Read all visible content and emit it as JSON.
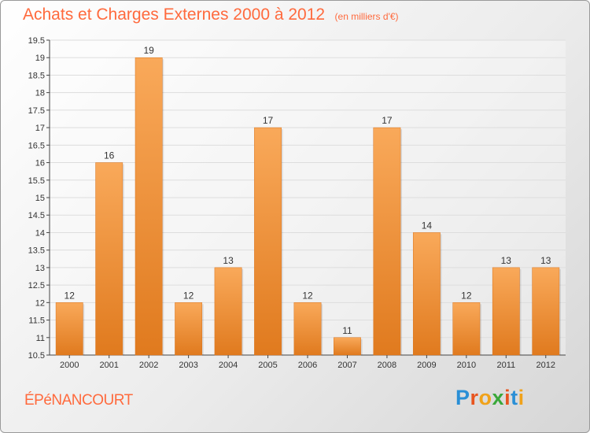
{
  "header": {
    "title": "Achats et Charges Externes 2000 à 2012",
    "subtitle": "(en milliers d'€)"
  },
  "footer": {
    "commune": "ÉPéNANCOURT",
    "logo_text": "Proxiti",
    "logo_colors": [
      "#2a8fd6",
      "#e8551f",
      "#f0a21a",
      "#3aa83a",
      "#e8551f",
      "#2a8fd6",
      "#f0a21a"
    ]
  },
  "colors": {
    "bar_light": "#f9a95a",
    "bar_dark": "#e07a1e",
    "grid": "#dddddd",
    "axis": "#444444",
    "accent": "#ff6a3d"
  },
  "chart_data": {
    "type": "bar",
    "title": "Achats et Charges Externes 2000 à 2012",
    "subtitle": "(en milliers d'€)",
    "xlabel": "",
    "ylabel": "",
    "categories": [
      "2000",
      "2001",
      "2002",
      "2003",
      "2004",
      "2005",
      "2006",
      "2007",
      "2008",
      "2009",
      "2010",
      "2011",
      "2012"
    ],
    "values": [
      12,
      16,
      19,
      12,
      13,
      17,
      12,
      11,
      17,
      14,
      12,
      13,
      13
    ],
    "ylim": [
      10.5,
      19.5
    ],
    "yticks": [
      "10.5",
      "11",
      "11.5",
      "12",
      "12.5",
      "13",
      "13.5",
      "14",
      "14.5",
      "15",
      "15.5",
      "16",
      "16.5",
      "17",
      "17.5",
      "18",
      "18.5",
      "19",
      "19.5"
    ],
    "grid": true,
    "legend": "none"
  }
}
